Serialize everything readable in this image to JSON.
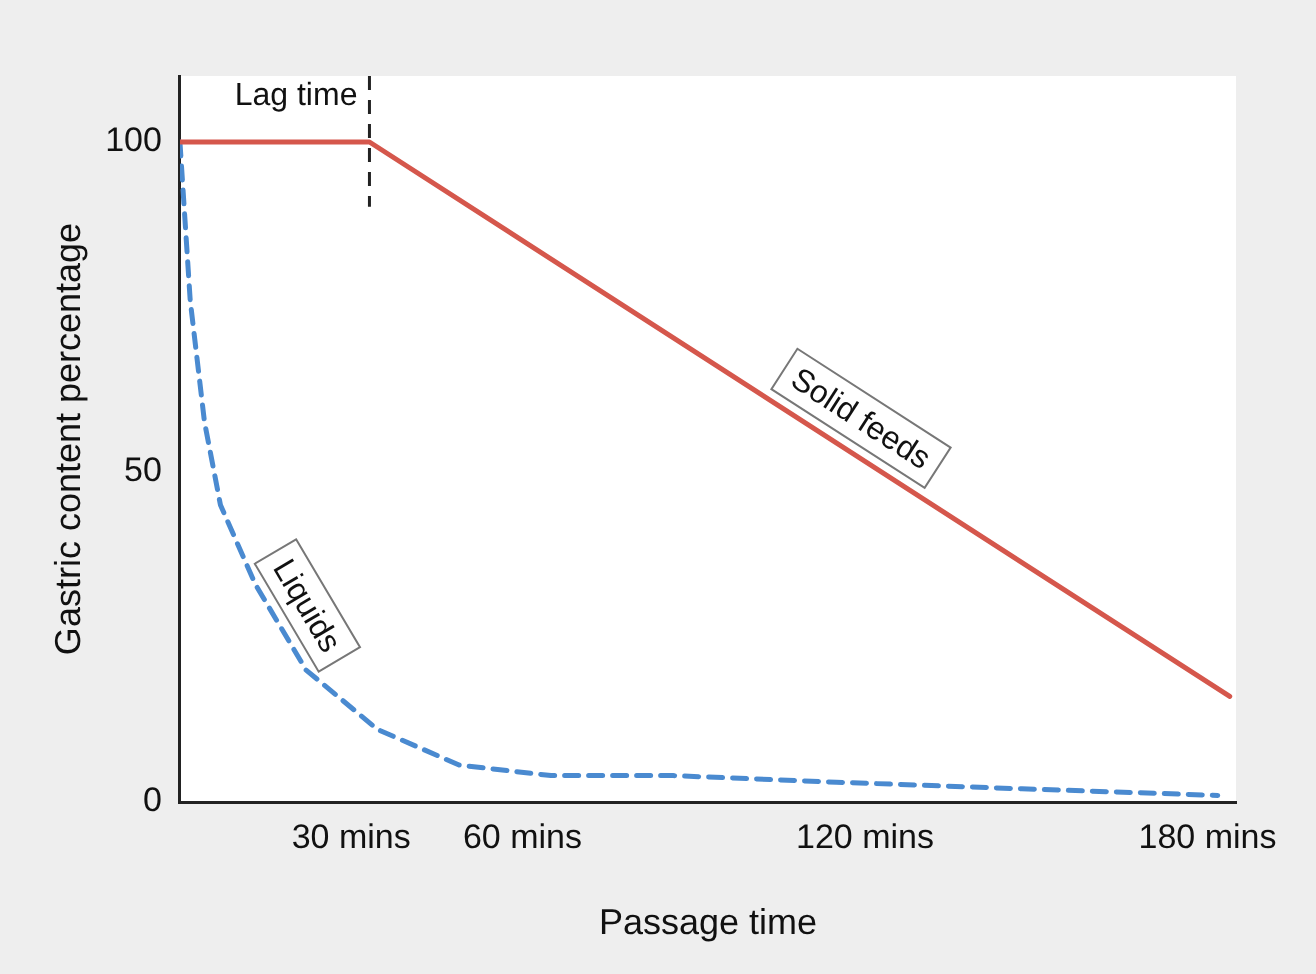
{
  "chart_data": {
    "type": "line",
    "xlabel": "Passage time",
    "ylabel": "Gastric content percentage",
    "xlim": [
      0,
      185
    ],
    "xticks": [
      {
        "value": 30,
        "label": "30 mins"
      },
      {
        "value": 60,
        "label": "60 mins"
      },
      {
        "value": 120,
        "label": "120 mins"
      },
      {
        "value": 180,
        "label": "180 mins"
      }
    ],
    "ylim": [
      0,
      110
    ],
    "yticks": [
      0,
      50,
      100
    ],
    "grid": false,
    "legend": false,
    "marker": "none",
    "series": [
      {
        "name": "Solid feeds",
        "color": "#d5574c",
        "line_style": "solid",
        "x": [
          0,
          33.2,
          183.9
        ],
        "values": [
          100,
          100,
          16
        ]
      },
      {
        "name": "Liquids",
        "color": "#4a8ad0",
        "line_style": "dashed",
        "x": [
          0,
          1.8,
          4.3,
          7.1,
          13.2,
          22.1,
          34.6,
          48.9,
          65,
          86.4,
          115,
          147.5,
          181.8
        ],
        "values": [
          100,
          76,
          57.6,
          45,
          33,
          20,
          11,
          5.6,
          4,
          4,
          3,
          2,
          1
        ]
      }
    ],
    "ref_lines": [
      {
        "axis": "x",
        "value": 33.2,
        "label": "Lag time",
        "line_style": "dashed",
        "color": "#222222"
      }
    ]
  }
}
